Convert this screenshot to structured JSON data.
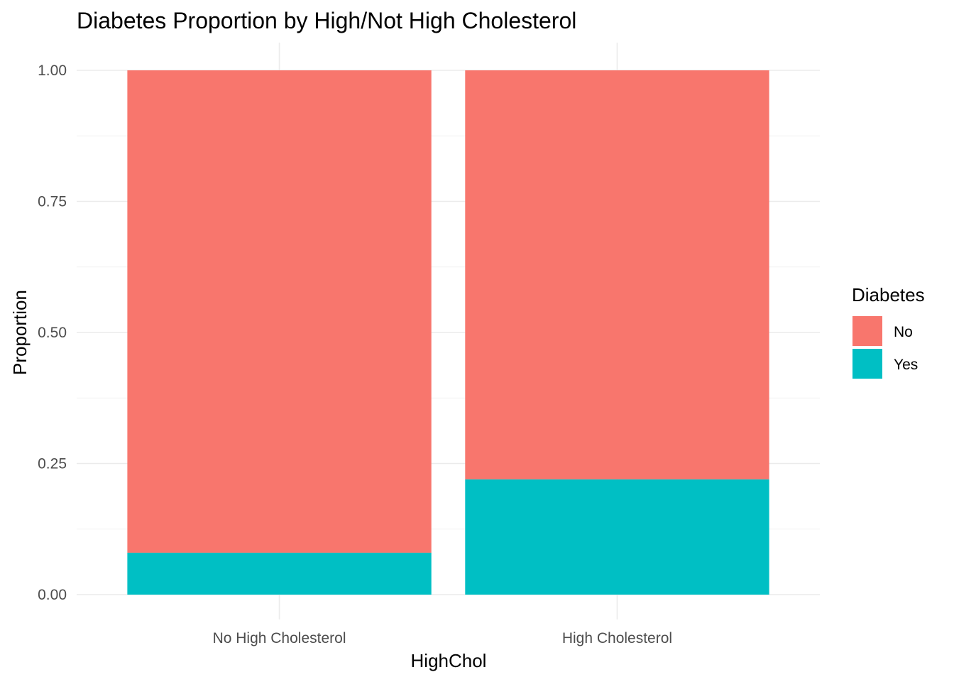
{
  "chart_data": {
    "type": "bar",
    "stacked": true,
    "title": "Diabetes Proportion by High/Not High Cholesterol",
    "xlabel": "HighChol",
    "ylabel": "Proportion",
    "categories": [
      "No High Cholesterol",
      "High Cholesterol"
    ],
    "series": [
      {
        "name": "No",
        "values": [
          0.92,
          0.78
        ],
        "color": "#F8766D"
      },
      {
        "name": "Yes",
        "values": [
          0.08,
          0.22
        ],
        "color": "#00BFC4"
      }
    ],
    "ylim": [
      0,
      1
    ],
    "yticks": [
      "0.00",
      "0.25",
      "0.50",
      "0.75",
      "1.00"
    ],
    "grid": true,
    "legend": {
      "title": "Diabetes",
      "position": "right",
      "items": [
        "No",
        "Yes"
      ]
    }
  }
}
